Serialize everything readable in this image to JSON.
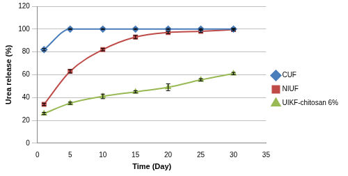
{
  "chart_data": {
    "type": "line",
    "x_label": "Time (Day)",
    "y_label": "Urea release (%)",
    "xlim": [
      0,
      35
    ],
    "xticks": [
      0,
      5,
      10,
      15,
      20,
      25,
      30,
      35
    ],
    "ylim": [
      0,
      120
    ],
    "yticks": [
      0,
      20,
      40,
      60,
      80,
      100,
      120
    ],
    "grid": "y",
    "legend": "right",
    "x": [
      1,
      5,
      10,
      15,
      20,
      25,
      30
    ],
    "series": [
      {
        "name": "CUF",
        "color": "#4a7ebb",
        "marker": "diamond",
        "values": [
          82,
          100,
          100,
          100,
          100,
          100,
          100
        ],
        "errors": [
          1,
          0.5,
          0.5,
          0.5,
          0.5,
          0.5,
          0.5
        ]
      },
      {
        "name": "NIUF",
        "color": "#be4b48",
        "marker": "square",
        "values": [
          34,
          63,
          82,
          93,
          97,
          98,
          99.5
        ],
        "errors": [
          1,
          1.5,
          1,
          1.5,
          1,
          1,
          1
        ]
      },
      {
        "name": "UIKF-chitosan 6%",
        "color": "#98b954",
        "marker": "triangle",
        "values": [
          26,
          35,
          41,
          45,
          49,
          55.5,
          61
        ],
        "errors": [
          1,
          1,
          2,
          1,
          3,
          1,
          1
        ]
      }
    ]
  }
}
